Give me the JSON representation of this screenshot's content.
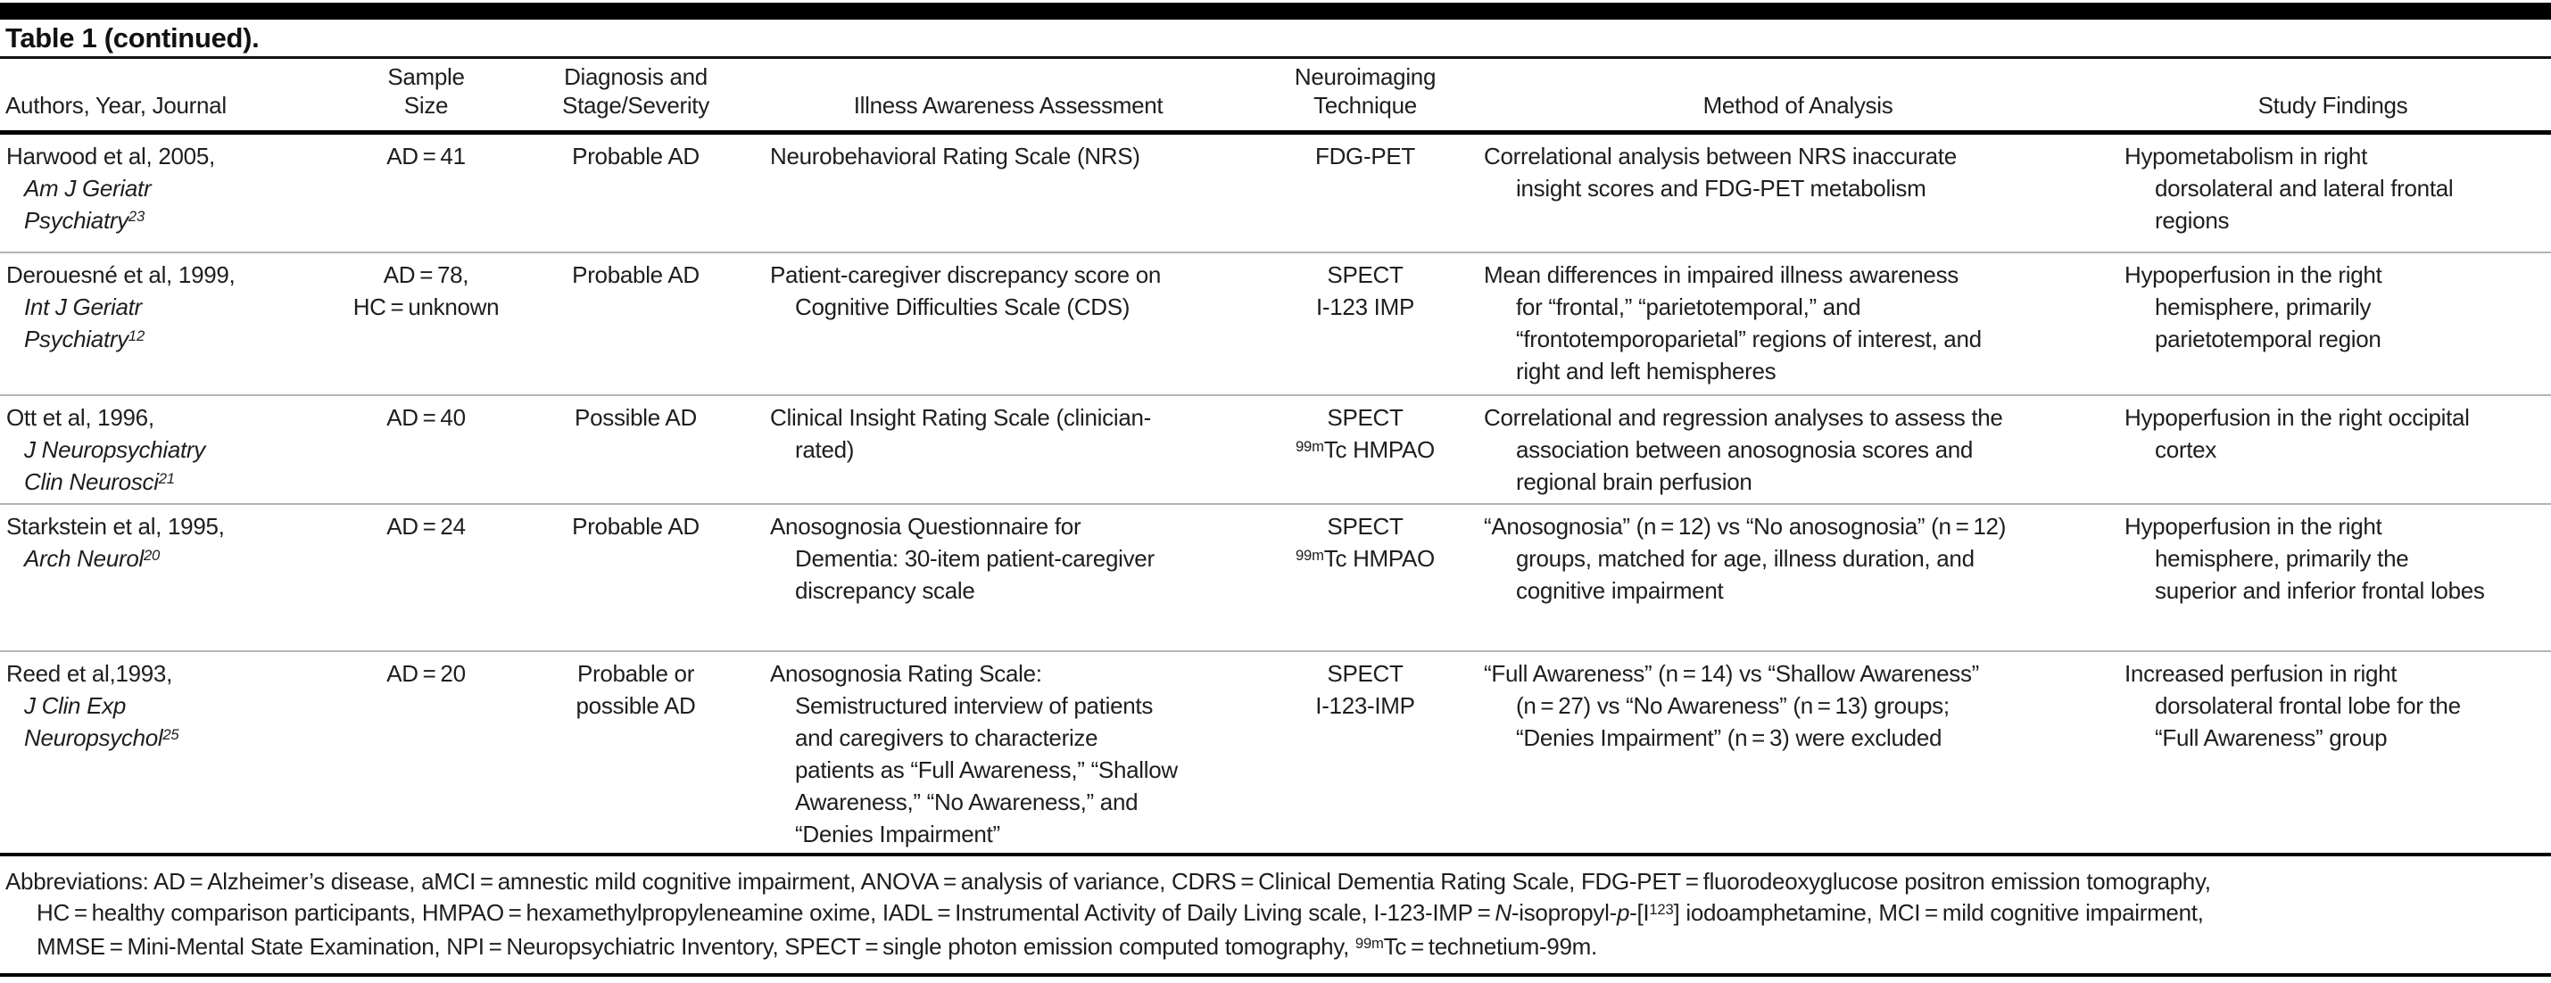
{
  "title": "Table 1 (continued).",
  "columns": [
    {
      "label": "Authors, Year, Journal"
    },
    {
      "label": "Sample\nSize"
    },
    {
      "label": "Diagnosis and\nStage/Severity"
    },
    {
      "label": "Illness Awareness Assessment"
    },
    {
      "label": "Neuroimaging\nTechnique"
    },
    {
      "label": "Method of Analysis"
    },
    {
      "label": "Study Findings"
    }
  ],
  "rows": [
    {
      "authors": {
        "name": "Harwood et al, 2005,",
        "journal": "Am J Geriatr\nPsychiatry",
        "ref": "23"
      },
      "sample_size": "AD = 41",
      "diagnosis": "Probable AD",
      "assessment": "Neurobehavioral Rating Scale (NRS)",
      "technique": {
        "line1": "FDG-PET",
        "sup": "",
        "line2": ""
      },
      "method": "Correlational analysis between NRS inaccurate\ninsight scores and FDG-PET metabolism",
      "findings": "Hypometabolism in right\ndorsolateral and lateral frontal\nregions"
    },
    {
      "authors": {
        "name": "Derouesné et al, 1999,",
        "journal": "Int J Geriatr\nPsychiatry",
        "ref": "12"
      },
      "sample_size": "AD = 78,\nHC = unknown",
      "diagnosis": "Probable AD",
      "assessment": "Patient-caregiver discrepancy score on\nCognitive Difficulties Scale (CDS)",
      "technique": {
        "line1": "SPECT",
        "sup": "",
        "line2": "I-123 IMP"
      },
      "method": "Mean differences in impaired illness awareness\nfor “frontal,” “parietotemporal,” and\n“frontotemporoparietal” regions of interest, and\nright and left hemispheres",
      "findings": "Hypoperfusion in the right\nhemisphere, primarily\nparietotemporal region"
    },
    {
      "authors": {
        "name": "Ott et al, 1996,",
        "journal": "J Neuropsychiatry\nClin Neurosci",
        "ref": "21"
      },
      "sample_size": "AD = 40",
      "diagnosis": "Possible AD",
      "assessment": "Clinical Insight Rating Scale (clinician-\nrated)",
      "technique": {
        "line1": "SPECT",
        "sup": "99m",
        "line2": "Tc HMPAO"
      },
      "method": "Correlational and regression analyses to assess the\nassociation between anosognosia scores and\nregional brain perfusion",
      "findings": "Hypoperfusion in the right occipital\ncortex"
    },
    {
      "authors": {
        "name": "Starkstein et al, 1995,",
        "journal": "Arch Neurol",
        "ref": "20"
      },
      "sample_size": "AD = 24",
      "diagnosis": "Probable AD",
      "assessment": "Anosognosia Questionnaire for\nDementia: 30-item patient-caregiver\ndiscrepancy scale",
      "technique": {
        "line1": "SPECT",
        "sup": "99m",
        "line2": "Tc HMPAO"
      },
      "method": "“Anosognosia” (n = 12) vs “No anosognosia” (n = 12)\ngroups, matched for age, illness duration, and\ncognitive impairment",
      "findings": "Hypoperfusion in the right\nhemisphere, primarily the\nsuperior and inferior frontal lobes"
    },
    {
      "authors": {
        "name": "Reed et al,1993,",
        "journal": "J Clin Exp\nNeuropsychol",
        "ref": "25"
      },
      "sample_size": "AD = 20",
      "diagnosis": "Probable or\npossible AD",
      "assessment": "Anosognosia Rating Scale:\nSemistructured interview of patients\nand caregivers to characterize\npatients as “Full Awareness,” “Shallow\nAwareness,” “No Awareness,” and\n“Denies Impairment”",
      "technique": {
        "line1": "SPECT",
        "sup": "",
        "line2": "I-123-IMP"
      },
      "method": "“Full Awareness” (n = 14) vs “Shallow Awareness”\n(n = 27) vs “No Awareness” (n = 13) groups;\n“Denies Impairment” (n = 3) were excluded",
      "findings": "Increased perfusion in right\ndorsolateral frontal lobe for the\n“Full Awareness” group"
    }
  ],
  "footnote": {
    "segments": [
      {
        "t": "Abbreviations: AD = Alzheimer’s disease, aMCI = amnestic mild cognitive impairment, ANOVA = analysis of variance, CDRS = Clinical Dementia Rating Scale, FDG-PET = fluorodeoxyglucose positron emission tomography,\nHC = healthy comparison participants, HMPAO = hexamethylpropyleneamine oxime, IADL = Instrumental Activity of Daily Living scale, I-123-IMP = "
      },
      {
        "t": "N",
        "s": "i"
      },
      {
        "t": "-isopropyl-"
      },
      {
        "t": "p",
        "s": "i"
      },
      {
        "t": "-[I"
      },
      {
        "t": "123",
        "s": "sup"
      },
      {
        "t": "] iodoamphetamine, MCI = mild cognitive impairment,\nMMSE = Mini-Mental State Examination, NPI = Neuropsychiatric Inventory, SPECT = single photon emission computed tomography, "
      },
      {
        "t": "99m",
        "s": "sup"
      },
      {
        "t": "Tc = technetium-99m."
      }
    ]
  }
}
